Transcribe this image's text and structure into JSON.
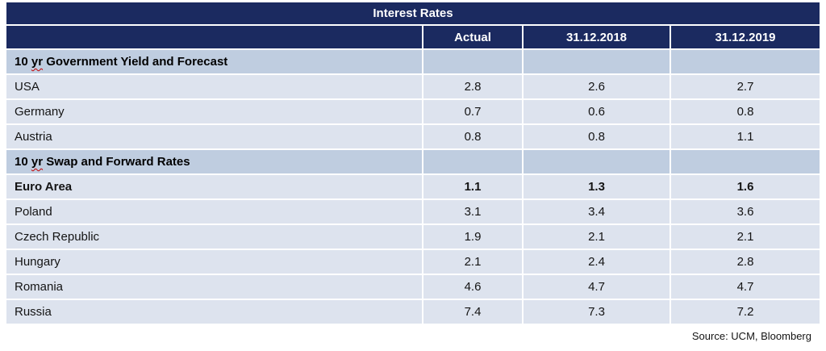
{
  "colors": {
    "header_navy": "#1b2a60",
    "section_row_bg": "#bfcde0",
    "data_row_bg": "#dde3ee",
    "spellcheck_underline": "#c40000"
  },
  "source_note": "Source: UCM, Bloomberg",
  "chart_data": {
    "type": "table",
    "title": "Interest Rates",
    "columns": [
      "",
      "Actual",
      "31.12.2018",
      "31.12.2019"
    ],
    "rows": [
      {
        "label": "10 yr Government Yield and Forecast",
        "label_pre": "10 ",
        "label_mis": "yr",
        "label_post": " Government Yield and Forecast",
        "section": true,
        "values": [
          "",
          "",
          ""
        ]
      },
      {
        "label": "USA",
        "values": [
          "2.8",
          "2.6",
          "2.7"
        ]
      },
      {
        "label": "Germany",
        "values": [
          "0.7",
          "0.6",
          "0.8"
        ]
      },
      {
        "label": "Austria",
        "values": [
          "0.8",
          "0.8",
          "1.1"
        ]
      },
      {
        "label": "10 yr Swap and Forward Rates",
        "label_pre": "10 ",
        "label_mis": "yr",
        "label_post": " Swap and Forward Rates",
        "section": true,
        "values": [
          "",
          "",
          ""
        ]
      },
      {
        "label": "Euro Area",
        "bold": true,
        "values": [
          "1.1",
          "1.3",
          "1.6"
        ]
      },
      {
        "label": "Poland",
        "values": [
          "3.1",
          "3.4",
          "3.6"
        ]
      },
      {
        "label": "Czech Republic",
        "values": [
          "1.9",
          "2.1",
          "2.1"
        ]
      },
      {
        "label": "Hungary",
        "values": [
          "2.1",
          "2.4",
          "2.8"
        ]
      },
      {
        "label": "Romania",
        "values": [
          "4.6",
          "4.7",
          "4.7"
        ]
      },
      {
        "label": "Russia",
        "values": [
          "7.4",
          "7.3",
          "7.2"
        ]
      }
    ],
    "layout_hints": {
      "value_columns_centered": true,
      "label_column_left_aligned": true
    }
  }
}
